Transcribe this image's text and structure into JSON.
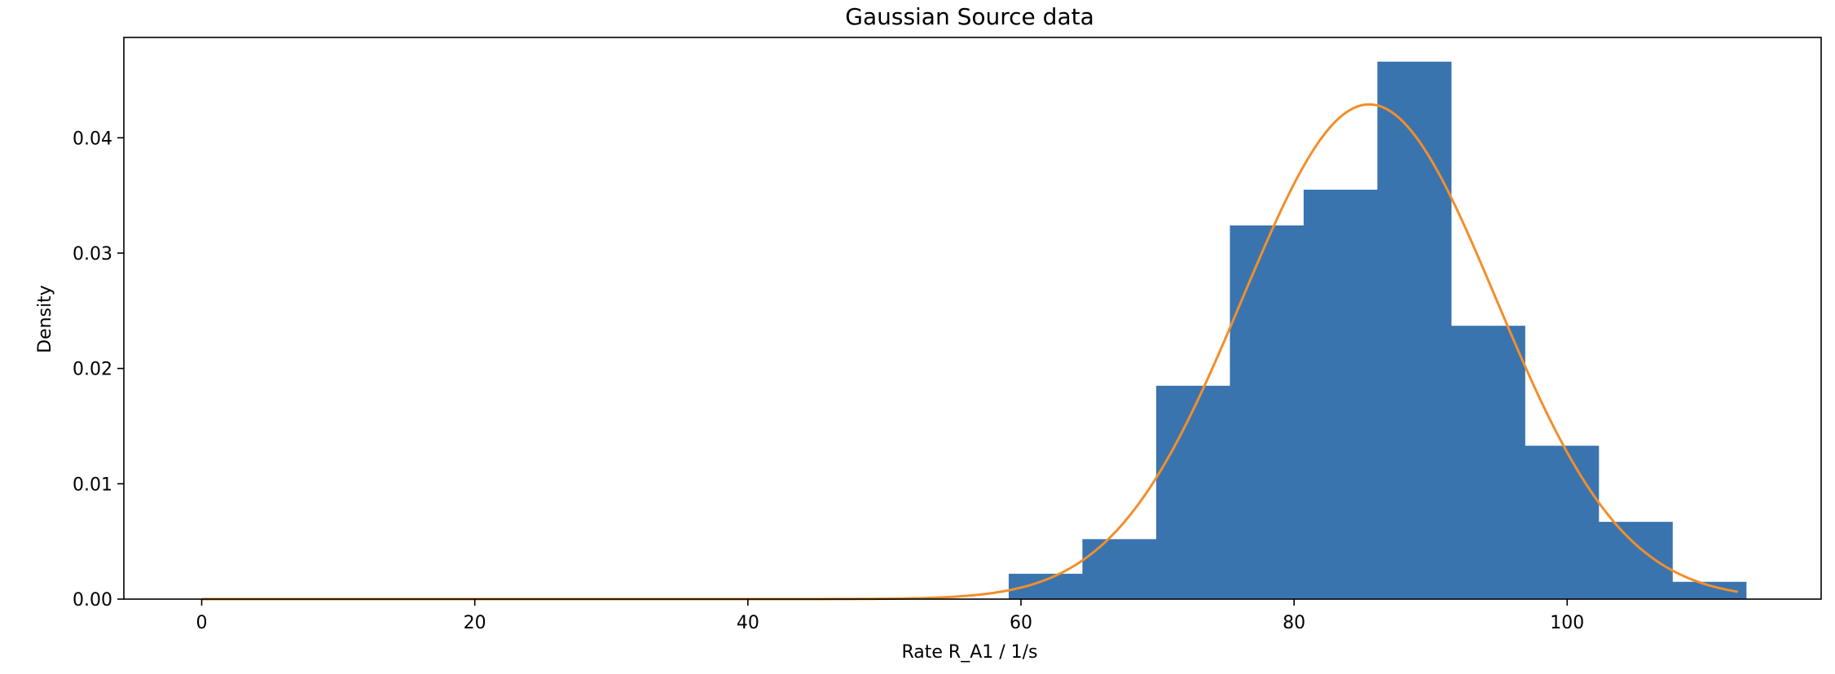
{
  "chart_data": {
    "type": "bar",
    "title": "Gaussian Source data",
    "xlabel": "Rate R_A1 / 1/s",
    "ylabel": "Density",
    "xlim": [
      -5.7,
      118.6
    ],
    "ylim": [
      0.0,
      0.0487
    ],
    "xticks": [
      0,
      20,
      40,
      60,
      80,
      100
    ],
    "yticks": [
      0.0,
      0.01,
      0.02,
      0.03,
      0.04
    ],
    "xtick_labels": [
      "0",
      "20",
      "40",
      "60",
      "80",
      "100"
    ],
    "ytick_labels": [
      "0.00",
      "0.01",
      "0.02",
      "0.03",
      "0.04"
    ],
    "grid": false,
    "histogram": {
      "bin_edges": [
        59.1,
        64.5,
        69.9,
        75.3,
        80.7,
        86.1,
        91.5,
        96.9,
        102.3,
        107.7,
        113.1
      ],
      "values": [
        0.0022,
        0.0052,
        0.0185,
        0.0324,
        0.0355,
        0.0466,
        0.0237,
        0.0133,
        0.0067,
        0.0015
      ],
      "color": "#3a74af"
    },
    "curve": {
      "type": "line",
      "distribution": "normal",
      "mean": 85.5,
      "std": 9.3,
      "x_range": [
        0,
        112.5
      ],
      "color": "#f28e2b"
    }
  }
}
